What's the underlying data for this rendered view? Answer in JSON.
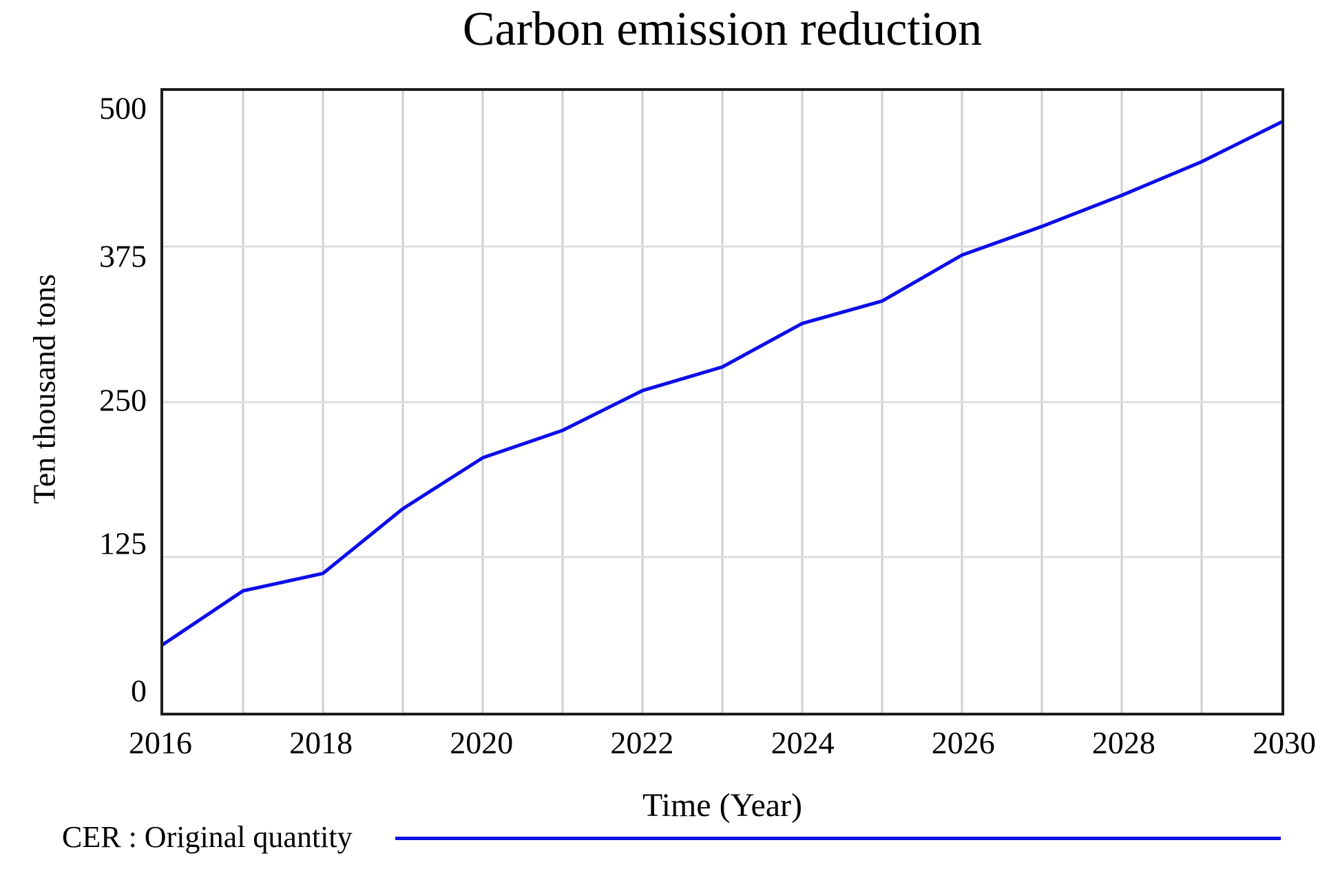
{
  "title": "Carbon emission reduction",
  "y_axis": {
    "label": "Ten thousand tons",
    "ticks": [
      "500",
      "375",
      "250",
      "125",
      "0"
    ]
  },
  "x_axis": {
    "label": "Time (Year)",
    "ticks": [
      "2016",
      "2018",
      "2020",
      "2022",
      "2024",
      "2026",
      "2028",
      "2030"
    ]
  },
  "legend": {
    "label": "CER : Original quantity"
  },
  "colors": {
    "line": "#0d0de8",
    "grid_vertical": "#cfcfcf",
    "grid_horizontal": "#dcdcdc",
    "border": "#1d1d1d",
    "text": "#000000",
    "background": "#ffffff"
  },
  "chart_data": {
    "type": "line",
    "title": "Carbon emission reduction",
    "xlabel": "Time (Year)",
    "ylabel": "Ten thousand tons",
    "x": [
      2016,
      2017,
      2018,
      2019,
      2020,
      2021,
      2022,
      2023,
      2024,
      2025,
      2026,
      2027,
      2028,
      2029,
      2030
    ],
    "series": [
      {
        "name": "CER : Original quantity",
        "color": "#0d0de8",
        "values": [
          55,
          98,
          112,
          164,
          205,
          227,
          259,
          278,
          313,
          331,
          368,
          391,
          416,
          443,
          475
        ]
      }
    ],
    "xlim": [
      2016,
      2030
    ],
    "ylim": [
      0,
      500
    ],
    "y_tick_values": [
      0,
      125,
      250,
      375,
      500
    ],
    "y_inner_gridlines": [
      125,
      250,
      375
    ],
    "x_gridline_interval_years": 1,
    "grid": true,
    "markers": false,
    "legend_position": "bottom-left"
  }
}
